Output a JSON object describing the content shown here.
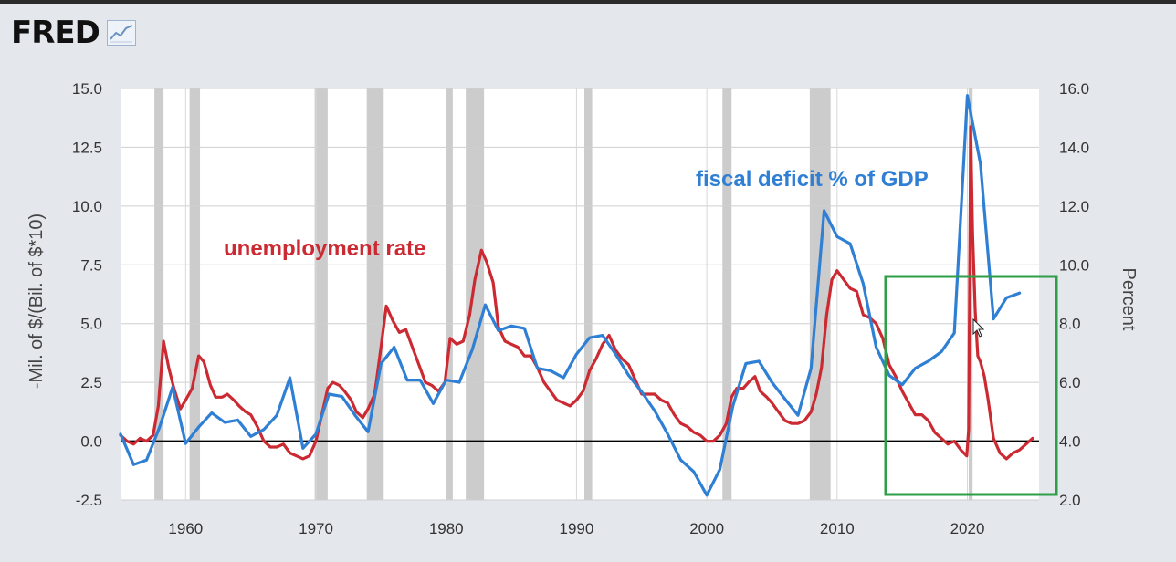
{
  "header": {
    "logo_text": "FRED",
    "logo_icon": "line-chart-icon"
  },
  "colors": {
    "unemployment": "#cc2a32",
    "deficit": "#2f7fd4",
    "zero_line": "#000000",
    "highlight_box": "#2e9e48",
    "recession": "#cccccc"
  },
  "chart_data": {
    "type": "line",
    "xlim": [
      1955,
      2025.5
    ],
    "x_ticks": [
      "1960",
      "1970",
      "1980",
      "1990",
      "2000",
      "2010",
      "2020"
    ],
    "left_axis": {
      "label": "-Mil. of $/(Bil. of $*10)",
      "ylim": [
        -2.5,
        15.0
      ],
      "ticks": [
        "-2.5",
        "0.0",
        "2.5",
        "5.0",
        "7.5",
        "10.0",
        "12.5",
        "15.0"
      ]
    },
    "right_axis": {
      "label": "Percent",
      "ylim": [
        2.0,
        16.0
      ],
      "ticks": [
        "2.0",
        "4.0",
        "6.0",
        "8.0",
        "10.0",
        "12.0",
        "14.0",
        "16.0"
      ]
    },
    "grid": true,
    "recessions": [
      [
        1957.6,
        1958.3
      ],
      [
        1960.3,
        1961.1
      ],
      [
        1969.9,
        1970.9
      ],
      [
        1973.9,
        1975.2
      ],
      [
        1980.0,
        1980.5
      ],
      [
        1981.5,
        1982.9
      ],
      [
        1990.6,
        1991.2
      ],
      [
        2001.2,
        2001.9
      ],
      [
        2007.9,
        2009.5
      ],
      [
        2020.1,
        2020.4
      ]
    ],
    "series": [
      {
        "name": "fiscal deficit % of GDP",
        "axis": "left",
        "x": [
          1955,
          1956,
          1957,
          1958,
          1959,
          1960,
          1961,
          1962,
          1963,
          1964,
          1965,
          1966,
          1967,
          1968,
          1969,
          1970,
          1971,
          1972,
          1973,
          1974,
          1975,
          1976,
          1977,
          1978,
          1979,
          1980,
          1981,
          1982,
          1983,
          1984,
          1985,
          1986,
          1987,
          1988,
          1989,
          1990,
          1991,
          1992,
          1993,
          1994,
          1995,
          1996,
          1997,
          1998,
          1999,
          2000,
          2001,
          2002,
          2003,
          2004,
          2005,
          2006,
          2007,
          2008,
          2009,
          2010,
          2011,
          2012,
          2013,
          2014,
          2015,
          2016,
          2017,
          2018,
          2019,
          2020,
          2021,
          2022,
          2023,
          2024
        ],
        "values": [
          0.3,
          -1.0,
          -0.8,
          0.6,
          2.3,
          -0.1,
          0.6,
          1.2,
          0.8,
          0.9,
          0.2,
          0.5,
          1.1,
          2.7,
          -0.3,
          0.3,
          2.0,
          1.9,
          1.1,
          0.4,
          3.3,
          4.0,
          2.6,
          2.6,
          1.6,
          2.6,
          2.5,
          3.9,
          5.8,
          4.7,
          4.9,
          4.8,
          3.1,
          3.0,
          2.7,
          3.7,
          4.4,
          4.5,
          3.7,
          2.8,
          2.1,
          1.3,
          0.3,
          -0.8,
          -1.3,
          -2.3,
          -1.2,
          1.5,
          3.3,
          3.4,
          2.5,
          1.8,
          1.1,
          3.1,
          9.8,
          8.7,
          8.4,
          6.7,
          4.0,
          2.8,
          2.4,
          3.1,
          3.4,
          3.8,
          4.6,
          14.7,
          11.8,
          5.2,
          6.1,
          6.3
        ]
      },
      {
        "name": "unemployment rate",
        "axis": "right",
        "x": [
          1955.0,
          1955.5,
          1956.0,
          1956.5,
          1957.0,
          1957.5,
          1957.9,
          1958.3,
          1958.7,
          1959.1,
          1959.6,
          1960.0,
          1960.5,
          1961.0,
          1961.4,
          1961.9,
          1962.3,
          1962.8,
          1963.2,
          1963.7,
          1964.1,
          1964.6,
          1965.0,
          1965.5,
          1966.0,
          1966.5,
          1967.0,
          1967.5,
          1968.0,
          1968.5,
          1969.0,
          1969.5,
          1970.0,
          1970.5,
          1970.9,
          1971.3,
          1971.8,
          1972.2,
          1972.7,
          1973.1,
          1973.6,
          1974.0,
          1974.5,
          1974.9,
          1975.4,
          1975.9,
          1976.4,
          1976.9,
          1977.4,
          1977.9,
          1978.4,
          1978.9,
          1979.4,
          1979.9,
          1980.3,
          1980.8,
          1981.3,
          1981.8,
          1982.2,
          1982.7,
          1983.1,
          1983.6,
          1984.0,
          1984.5,
          1985.0,
          1985.5,
          1986.0,
          1986.5,
          1987.0,
          1987.5,
          1988.0,
          1988.5,
          1989.0,
          1989.5,
          1990.0,
          1990.5,
          1991.0,
          1991.5,
          1992.0,
          1992.5,
          1993.0,
          1993.5,
          1994.0,
          1994.5,
          1995.0,
          1995.5,
          1996.0,
          1996.5,
          1997.0,
          1997.5,
          1998.0,
          1998.5,
          1999.0,
          1999.5,
          2000.0,
          2000.5,
          2001.0,
          2001.5,
          2001.9,
          2002.3,
          2002.8,
          2003.2,
          2003.7,
          2004.1,
          2004.6,
          2005.0,
          2005.5,
          2006.0,
          2006.5,
          2007.0,
          2007.5,
          2008.0,
          2008.4,
          2008.8,
          2009.2,
          2009.6,
          2010.0,
          2010.5,
          2011.0,
          2011.5,
          2012.0,
          2012.5,
          2013.0,
          2013.5,
          2014.0,
          2014.5,
          2015.0,
          2015.5,
          2016.0,
          2016.5,
          2017.0,
          2017.5,
          2018.0,
          2018.5,
          2019.0,
          2019.5,
          2019.95,
          2020.1,
          2020.25,
          2020.4,
          2020.6,
          2020.8,
          2021.0,
          2021.3,
          2021.6,
          2022.0,
          2022.5,
          2023.0,
          2023.5,
          2024.0,
          2024.5,
          2025.0
        ],
        "values": [
          4.2,
          4.0,
          3.9,
          4.1,
          4.0,
          4.2,
          5.2,
          7.4,
          6.5,
          5.8,
          5.1,
          5.4,
          5.8,
          6.9,
          6.7,
          5.9,
          5.5,
          5.5,
          5.6,
          5.4,
          5.2,
          5.0,
          4.9,
          4.5,
          4.0,
          3.8,
          3.8,
          3.9,
          3.6,
          3.5,
          3.4,
          3.5,
          4.0,
          5.0,
          5.8,
          6.0,
          5.9,
          5.7,
          5.4,
          5.0,
          4.8,
          5.1,
          5.6,
          6.9,
          8.6,
          8.1,
          7.7,
          7.8,
          7.2,
          6.6,
          6.0,
          5.9,
          5.7,
          6.0,
          7.5,
          7.3,
          7.4,
          8.3,
          9.5,
          10.5,
          10.1,
          9.4,
          7.9,
          7.4,
          7.3,
          7.2,
          6.9,
          6.9,
          6.5,
          6.0,
          5.7,
          5.4,
          5.3,
          5.2,
          5.4,
          5.7,
          6.4,
          6.8,
          7.3,
          7.6,
          7.1,
          6.8,
          6.6,
          6.1,
          5.6,
          5.6,
          5.6,
          5.4,
          5.3,
          4.9,
          4.6,
          4.5,
          4.3,
          4.2,
          4.0,
          4.0,
          4.2,
          4.6,
          5.5,
          5.8,
          5.8,
          6.0,
          6.2,
          5.7,
          5.5,
          5.3,
          5.0,
          4.7,
          4.6,
          4.6,
          4.7,
          5.0,
          5.6,
          6.5,
          8.3,
          9.5,
          9.8,
          9.5,
          9.2,
          9.1,
          8.3,
          8.2,
          8.0,
          7.5,
          6.6,
          6.2,
          5.7,
          5.3,
          4.9,
          4.9,
          4.7,
          4.3,
          4.1,
          3.9,
          4.0,
          3.7,
          3.5,
          4.4,
          14.7,
          11.1,
          8.4,
          6.9,
          6.7,
          6.2,
          5.4,
          4.1,
          3.6,
          3.4,
          3.6,
          3.7,
          3.9,
          4.1
        ]
      }
    ],
    "annotations": [
      {
        "id": "unemployment_label",
        "text": "unemployment rate",
        "color": "#cc2a32"
      },
      {
        "id": "deficit_label",
        "text": "fiscal deficit % of GDP",
        "color": "#2f7fd4"
      }
    ]
  }
}
